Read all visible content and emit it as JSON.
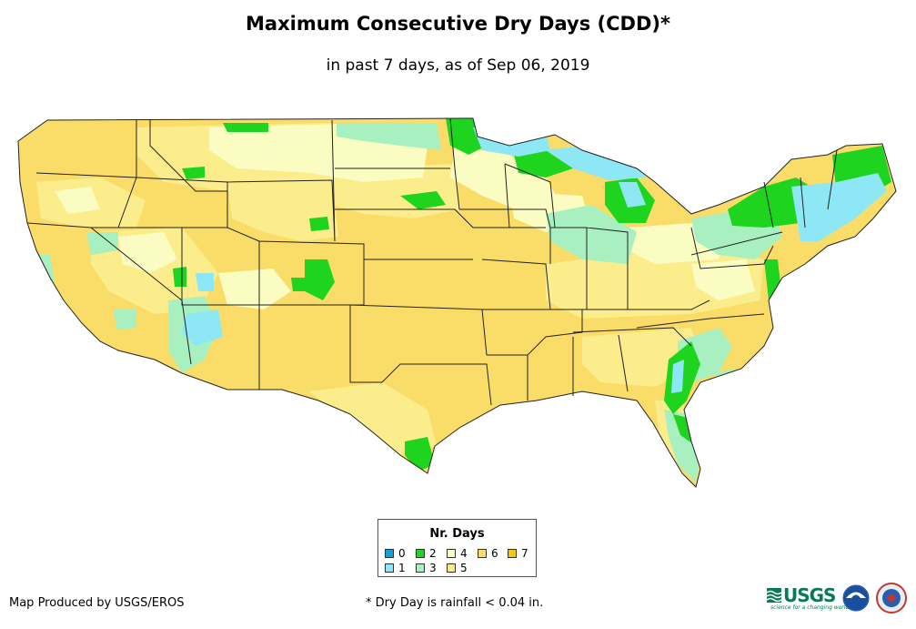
{
  "title": "Maximum Consecutive Dry Days (CDD)*",
  "subtitle": "in past 7 days, as of Sep 06, 2019",
  "legend": {
    "title": "Nr. Days",
    "items": [
      {
        "label": "0",
        "color": "#12a0e0"
      },
      {
        "label": "1",
        "color": "#8ee7f5"
      },
      {
        "label": "2",
        "color": "#1ed41e"
      },
      {
        "label": "3",
        "color": "#a8f0c0"
      },
      {
        "label": "4",
        "color": "#fafcc2"
      },
      {
        "label": "5",
        "color": "#fbed8c"
      },
      {
        "label": "6",
        "color": "#fadd68"
      },
      {
        "label": "7",
        "color": "#f8c610"
      }
    ]
  },
  "credit": "Map Produced by USGS/EROS",
  "footnote": "* Dry Day is rainfall < 0.04 in.",
  "logos": {
    "usgs": "USGS",
    "usgs_tagline": "science for a changing world"
  }
}
